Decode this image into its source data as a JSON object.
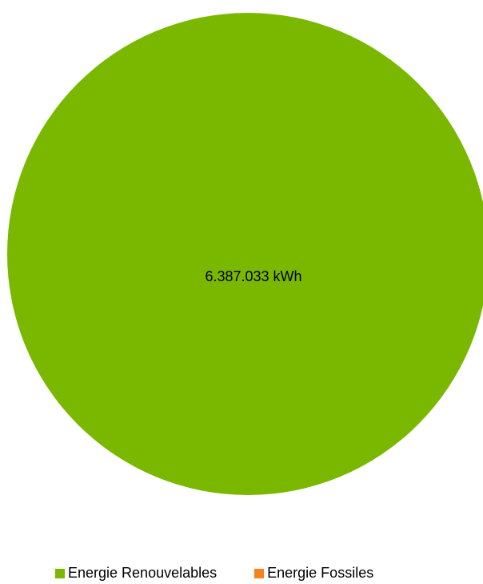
{
  "chart_data": {
    "type": "pie",
    "categories": [
      "Energie Renouvelables",
      "Energie Fossiles"
    ],
    "values": [
      6387033,
      0
    ],
    "colors": [
      "#7ab800",
      "#f5821f"
    ],
    "data_labels": [
      "6.387.033 kWh",
      ""
    ],
    "title": "",
    "legend_position": "bottom"
  },
  "legend": {
    "items": [
      {
        "label": "Energie Renouvelables",
        "color": "#7ab800"
      },
      {
        "label": "Energie Fossiles",
        "color": "#f5821f"
      }
    ]
  }
}
